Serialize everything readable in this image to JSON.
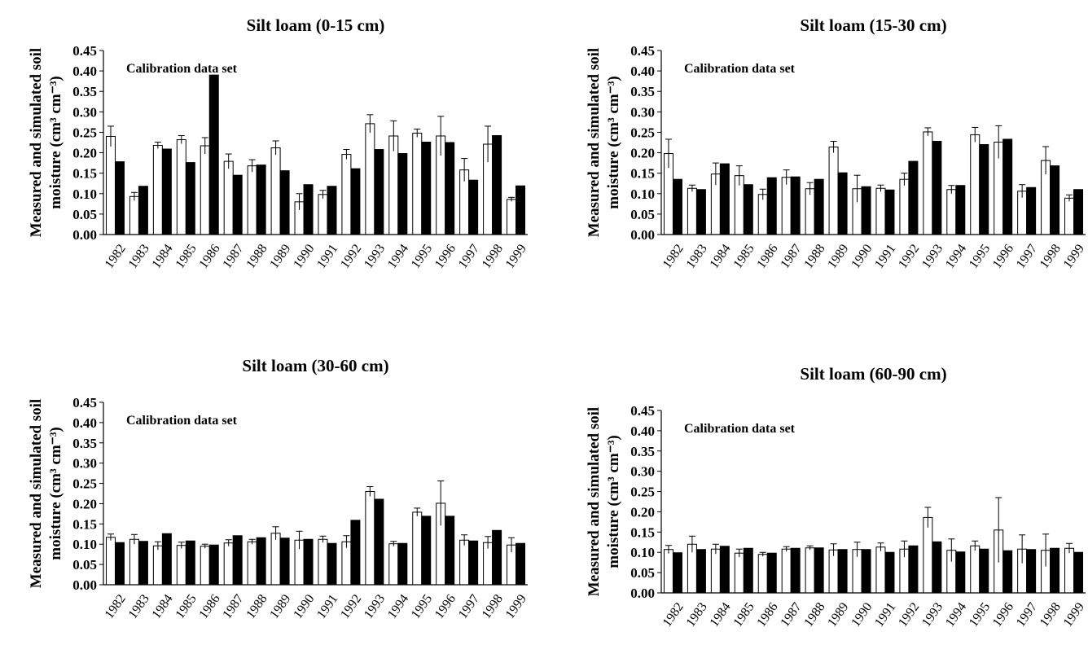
{
  "chart_data": [
    {
      "type": "bar",
      "title": "Silt loam (0-15 cm)",
      "annotation": "Calibration data set",
      "ylabel_line1": "Measured and simulated soil",
      "ylabel_line2": "moisture (cm³ cm⁻³)",
      "xlabel": "",
      "ylim": [
        0,
        0.45
      ],
      "yticks": [
        "0.00",
        "0.05",
        "0.10",
        "0.15",
        "0.20",
        "0.25",
        "0.30",
        "0.35",
        "0.40",
        "0.45"
      ],
      "grid": false,
      "categories": [
        "1982",
        "1983",
        "1984",
        "1985",
        "1986",
        "1987",
        "1988",
        "1989",
        "1990",
        "1991",
        "1992",
        "1993",
        "1994",
        "1995",
        "1996",
        "1997",
        "1998",
        "1999"
      ],
      "series": [
        {
          "fill": "#ffffff",
          "values": [
            0.24,
            0.093,
            0.218,
            0.232,
            0.217,
            0.179,
            0.168,
            0.212,
            0.08,
            0.098,
            0.196,
            0.271,
            0.241,
            0.248,
            0.241,
            0.158,
            0.221,
            0.086
          ],
          "errors": [
            0.025,
            0.01,
            0.008,
            0.01,
            0.02,
            0.018,
            0.015,
            0.017,
            0.02,
            0.01,
            0.012,
            0.022,
            0.037,
            0.01,
            0.048,
            0.028,
            0.044,
            0.005
          ]
        },
        {
          "fill": "#000000",
          "values": [
            0.178,
            0.118,
            0.209,
            0.176,
            0.39,
            0.145,
            0.17,
            0.156,
            0.122,
            0.118,
            0.161,
            0.208,
            0.198,
            0.226,
            0.225,
            0.133,
            0.242,
            0.119
          ]
        }
      ]
    },
    {
      "type": "bar",
      "title": "Silt loam (15-30 cm)",
      "annotation": "Calibration data set",
      "ylabel_line1": "Measured and simulated soil",
      "ylabel_line2": "moisture (cm³ cm⁻³)",
      "xlabel": "",
      "ylim": [
        0,
        0.45
      ],
      "yticks": [
        "0.00",
        "0.05",
        "0.10",
        "0.15",
        "0.20",
        "0.25",
        "0.30",
        "0.35",
        "0.40",
        "0.45"
      ],
      "grid": false,
      "categories": [
        "1982",
        "1983",
        "1984",
        "1985",
        "1986",
        "1987",
        "1988",
        "1989",
        "1990",
        "1991",
        "1992",
        "1993",
        "1994",
        "1995",
        "1996",
        "1997",
        "1998",
        "1999"
      ],
      "series": [
        {
          "fill": "#ffffff",
          "values": [
            0.198,
            0.113,
            0.148,
            0.144,
            0.098,
            0.14,
            0.112,
            0.214,
            0.112,
            0.113,
            0.135,
            0.251,
            0.11,
            0.244,
            0.226,
            0.106,
            0.181,
            0.089
          ],
          "errors": [
            0.035,
            0.008,
            0.027,
            0.024,
            0.013,
            0.018,
            0.015,
            0.014,
            0.033,
            0.008,
            0.015,
            0.01,
            0.01,
            0.018,
            0.04,
            0.016,
            0.034,
            0.008
          ]
        },
        {
          "fill": "#000000",
          "values": [
            0.135,
            0.11,
            0.173,
            0.122,
            0.139,
            0.141,
            0.135,
            0.151,
            0.117,
            0.109,
            0.179,
            0.228,
            0.12,
            0.22,
            0.233,
            0.115,
            0.168,
            0.11
          ]
        }
      ]
    },
    {
      "type": "bar",
      "title": "Silt loam (30-60 cm)",
      "annotation": "Calibration data set",
      "ylabel_line1": "Measured and simulated soil",
      "ylabel_line2": "moisture (cm³ cm⁻³)",
      "xlabel": "",
      "ylim": [
        0,
        0.45
      ],
      "yticks": [
        "0.00",
        "0.05",
        "0.10",
        "0.15",
        "0.20",
        "0.25",
        "0.30",
        "0.35",
        "0.40",
        "0.45"
      ],
      "grid": false,
      "categories": [
        "1982",
        "1983",
        "1984",
        "1985",
        "1986",
        "1987",
        "1988",
        "1989",
        "1990",
        "1991",
        "1992",
        "1993",
        "1994",
        "1995",
        "1996",
        "1997",
        "1998",
        "1999"
      ],
      "series": [
        {
          "fill": "#ffffff",
          "values": [
            0.117,
            0.112,
            0.096,
            0.097,
            0.095,
            0.103,
            0.106,
            0.127,
            0.11,
            0.112,
            0.106,
            0.23,
            0.101,
            0.179,
            0.201,
            0.11,
            0.104,
            0.098
          ],
          "errors": [
            0.008,
            0.012,
            0.01,
            0.008,
            0.005,
            0.008,
            0.006,
            0.016,
            0.022,
            0.008,
            0.015,
            0.012,
            0.006,
            0.01,
            0.055,
            0.013,
            0.015,
            0.018
          ]
        },
        {
          "fill": "#000000",
          "values": [
            0.104,
            0.107,
            0.126,
            0.108,
            0.098,
            0.121,
            0.116,
            0.115,
            0.112,
            0.102,
            0.159,
            0.211,
            0.102,
            0.169,
            0.169,
            0.108,
            0.134,
            0.102
          ]
        }
      ]
    },
    {
      "type": "bar",
      "title": "Silt loam (60-90 cm)",
      "annotation": "Calibration data set",
      "ylabel_line1": "Measured and simulated soil",
      "ylabel_line2": "moisture (cm³ cm⁻³)",
      "xlabel": "",
      "ylim": [
        0,
        0.45
      ],
      "yticks": [
        "0.00",
        "0.05",
        "0.10",
        "0.15",
        "0.20",
        "0.25",
        "0.30",
        "0.35",
        "0.40",
        "0.45"
      ],
      "grid": false,
      "categories": [
        "1982",
        "1983",
        "1984",
        "1985",
        "1986",
        "1987",
        "1988",
        "1989",
        "1990",
        "1991",
        "1992",
        "1993",
        "1994",
        "1995",
        "1996",
        "1997",
        "1998",
        "1999"
      ],
      "series": [
        {
          "fill": "#ffffff",
          "values": [
            0.107,
            0.12,
            0.108,
            0.098,
            0.095,
            0.108,
            0.111,
            0.106,
            0.107,
            0.113,
            0.108,
            0.186,
            0.105,
            0.116,
            0.155,
            0.108,
            0.105,
            0.11
          ],
          "errors": [
            0.01,
            0.02,
            0.012,
            0.01,
            0.005,
            0.006,
            0.005,
            0.015,
            0.018,
            0.01,
            0.02,
            0.025,
            0.028,
            0.012,
            0.08,
            0.035,
            0.04,
            0.012
          ]
        },
        {
          "fill": "#000000",
          "values": [
            0.099,
            0.107,
            0.115,
            0.11,
            0.098,
            0.11,
            0.111,
            0.107,
            0.107,
            0.1,
            0.116,
            0.126,
            0.101,
            0.108,
            0.104,
            0.107,
            0.11,
            0.1
          ]
        }
      ]
    }
  ]
}
